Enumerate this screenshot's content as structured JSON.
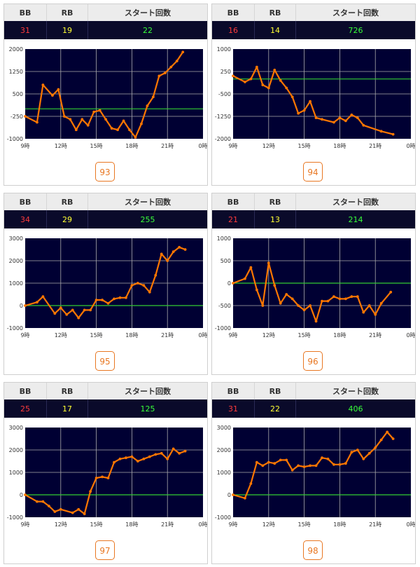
{
  "headers": {
    "bb": "BB",
    "rb": "RB",
    "start": "スタート回数"
  },
  "colors": {
    "plot_bg": "#000033",
    "line": "#ff7700",
    "zero": "#33cc33",
    "grid": "#aaaaaa"
  },
  "cards": [
    {
      "bb": "31",
      "rb": "19",
      "start": "22",
      "number": "93",
      "chart_data": {
        "type": "line",
        "xticks": [
          "9時",
          "12時",
          "15時",
          "18時",
          "21時",
          "0時"
        ],
        "xlim": [
          9,
          24
        ],
        "ylim": [
          -1000,
          2000
        ],
        "yticks": [
          "2000",
          "1250",
          "500",
          "-250",
          "-1000"
        ],
        "points": [
          [
            9,
            -250
          ],
          [
            10,
            -450
          ],
          [
            10.5,
            800
          ],
          [
            11.3,
            450
          ],
          [
            11.8,
            650
          ],
          [
            12.3,
            -250
          ],
          [
            12.8,
            -350
          ],
          [
            13.3,
            -700
          ],
          [
            13.8,
            -350
          ],
          [
            14.3,
            -550
          ],
          [
            14.8,
            -100
          ],
          [
            15.3,
            -50
          ],
          [
            15.8,
            -350
          ],
          [
            16.3,
            -650
          ],
          [
            16.8,
            -700
          ],
          [
            17.3,
            -400
          ],
          [
            17.8,
            -700
          ],
          [
            18.3,
            -950
          ],
          [
            18.8,
            -500
          ],
          [
            19.3,
            100
          ],
          [
            19.8,
            400
          ],
          [
            20.3,
            1100
          ],
          [
            20.8,
            1200
          ],
          [
            21.3,
            1400
          ],
          [
            21.8,
            1600
          ],
          [
            22.3,
            1900
          ]
        ]
      }
    },
    {
      "bb": "16",
      "rb": "14",
      "start": "726",
      "number": "94",
      "chart_data": {
        "type": "line",
        "xticks": [
          "9時",
          "12時",
          "15時",
          "18時",
          "21時",
          "0時"
        ],
        "xlim": [
          9,
          24
        ],
        "ylim": [
          -2000,
          1000
        ],
        "yticks": [
          "1000",
          "250",
          "-500",
          "-1250",
          "-2000"
        ],
        "points": [
          [
            9,
            100
          ],
          [
            10,
            -100
          ],
          [
            10.5,
            0
          ],
          [
            11,
            400
          ],
          [
            11.5,
            -200
          ],
          [
            12,
            -300
          ],
          [
            12.5,
            300
          ],
          [
            13,
            -50
          ],
          [
            13.5,
            -300
          ],
          [
            14,
            -600
          ],
          [
            14.5,
            -1150
          ],
          [
            15,
            -1050
          ],
          [
            15.5,
            -750
          ],
          [
            16,
            -1300
          ],
          [
            16.5,
            -1350
          ],
          [
            17.5,
            -1450
          ],
          [
            18,
            -1300
          ],
          [
            18.5,
            -1400
          ],
          [
            19,
            -1200
          ],
          [
            19.5,
            -1300
          ],
          [
            20,
            -1550
          ],
          [
            21.5,
            -1750
          ],
          [
            22.5,
            -1850
          ]
        ]
      }
    },
    {
      "bb": "34",
      "rb": "29",
      "start": "255",
      "number": "95",
      "chart_data": {
        "type": "line",
        "xticks": [
          "9時",
          "12時",
          "15時",
          "18時",
          "21時",
          "0時"
        ],
        "xlim": [
          9,
          24
        ],
        "ylim": [
          -1000,
          3000
        ],
        "yticks": [
          "3000",
          "2000",
          "1000",
          "0",
          "-1000"
        ],
        "points": [
          [
            9,
            0
          ],
          [
            10,
            150
          ],
          [
            10.5,
            400
          ],
          [
            11.5,
            -350
          ],
          [
            12,
            -100
          ],
          [
            12.5,
            -400
          ],
          [
            13,
            -200
          ],
          [
            13.5,
            -550
          ],
          [
            14,
            -200
          ],
          [
            14.5,
            -200
          ],
          [
            15,
            250
          ],
          [
            15.5,
            250
          ],
          [
            16,
            100
          ],
          [
            16.5,
            300
          ],
          [
            17,
            350
          ],
          [
            17.5,
            350
          ],
          [
            18,
            900
          ],
          [
            18.5,
            1000
          ],
          [
            19,
            900
          ],
          [
            19.5,
            600
          ],
          [
            20,
            1350
          ],
          [
            20.5,
            2300
          ],
          [
            21,
            2000
          ],
          [
            21.5,
            2400
          ],
          [
            22,
            2600
          ],
          [
            22.5,
            2500
          ]
        ]
      }
    },
    {
      "bb": "21",
      "rb": "13",
      "start": "214",
      "number": "96",
      "chart_data": {
        "type": "line",
        "xticks": [
          "9時",
          "12時",
          "15時",
          "18時",
          "21時",
          "0時"
        ],
        "xlim": [
          9,
          24
        ],
        "ylim": [
          -1000,
          1000
        ],
        "yticks": [
          "1000",
          "500",
          "0",
          "-500",
          "-1000"
        ],
        "points": [
          [
            9,
            0
          ],
          [
            10,
            100
          ],
          [
            10.5,
            350
          ],
          [
            11,
            -150
          ],
          [
            11.5,
            -500
          ],
          [
            12,
            450
          ],
          [
            12.5,
            -50
          ],
          [
            13,
            -450
          ],
          [
            13.5,
            -250
          ],
          [
            14,
            -350
          ],
          [
            14.5,
            -500
          ],
          [
            15,
            -600
          ],
          [
            15.5,
            -500
          ],
          [
            16,
            -850
          ],
          [
            16.5,
            -400
          ],
          [
            17,
            -400
          ],
          [
            17.5,
            -300
          ],
          [
            18,
            -350
          ],
          [
            18.5,
            -350
          ],
          [
            19,
            -300
          ],
          [
            19.5,
            -300
          ],
          [
            20,
            -650
          ],
          [
            20.5,
            -500
          ],
          [
            21,
            -700
          ],
          [
            21.5,
            -450
          ],
          [
            22.3,
            -200
          ]
        ]
      }
    },
    {
      "bb": "25",
      "rb": "17",
      "start": "125",
      "number": "97",
      "chart_data": {
        "type": "line",
        "xticks": [
          "9時",
          "12時",
          "15時",
          "18時",
          "21時",
          "0時"
        ],
        "xlim": [
          9,
          24
        ],
        "ylim": [
          -1000,
          3000
        ],
        "yticks": [
          "3000",
          "2000",
          "1000",
          "0",
          "-1000"
        ],
        "points": [
          [
            9,
            0
          ],
          [
            10,
            -300
          ],
          [
            10.5,
            -300
          ],
          [
            11,
            -500
          ],
          [
            11.5,
            -750
          ],
          [
            12,
            -650
          ],
          [
            13,
            -800
          ],
          [
            13.5,
            -650
          ],
          [
            14,
            -850
          ],
          [
            14.5,
            150
          ],
          [
            15,
            750
          ],
          [
            15.5,
            800
          ],
          [
            16,
            750
          ],
          [
            16.5,
            1450
          ],
          [
            17,
            1600
          ],
          [
            17.5,
            1650
          ],
          [
            18,
            1700
          ],
          [
            18.5,
            1500
          ],
          [
            19,
            1600
          ],
          [
            19.5,
            1700
          ],
          [
            20,
            1800
          ],
          [
            20.5,
            1850
          ],
          [
            21,
            1600
          ],
          [
            21.5,
            2050
          ],
          [
            22,
            1850
          ],
          [
            22.5,
            1950
          ]
        ]
      }
    },
    {
      "bb": "31",
      "rb": "22",
      "start": "406",
      "number": "98",
      "chart_data": {
        "type": "line",
        "xticks": [
          "9時",
          "12時",
          "15時",
          "18時",
          "21時",
          "0時"
        ],
        "xlim": [
          9,
          24
        ],
        "ylim": [
          -1000,
          3000
        ],
        "yticks": [
          "3000",
          "2000",
          "1000",
          "0",
          "-1000"
        ],
        "points": [
          [
            9,
            0
          ],
          [
            10,
            -150
          ],
          [
            10.5,
            500
          ],
          [
            11,
            1450
          ],
          [
            11.5,
            1300
          ],
          [
            12,
            1450
          ],
          [
            12.5,
            1400
          ],
          [
            13,
            1550
          ],
          [
            13.5,
            1550
          ],
          [
            14,
            1100
          ],
          [
            14.5,
            1300
          ],
          [
            15,
            1250
          ],
          [
            15.5,
            1300
          ],
          [
            16,
            1300
          ],
          [
            16.5,
            1650
          ],
          [
            17,
            1600
          ],
          [
            17.5,
            1350
          ],
          [
            18,
            1350
          ],
          [
            18.5,
            1400
          ],
          [
            19,
            1900
          ],
          [
            19.5,
            2000
          ],
          [
            20,
            1600
          ],
          [
            20.5,
            1850
          ],
          [
            21,
            2100
          ],
          [
            21.5,
            2450
          ],
          [
            22,
            2800
          ],
          [
            22.5,
            2500
          ]
        ]
      }
    }
  ]
}
